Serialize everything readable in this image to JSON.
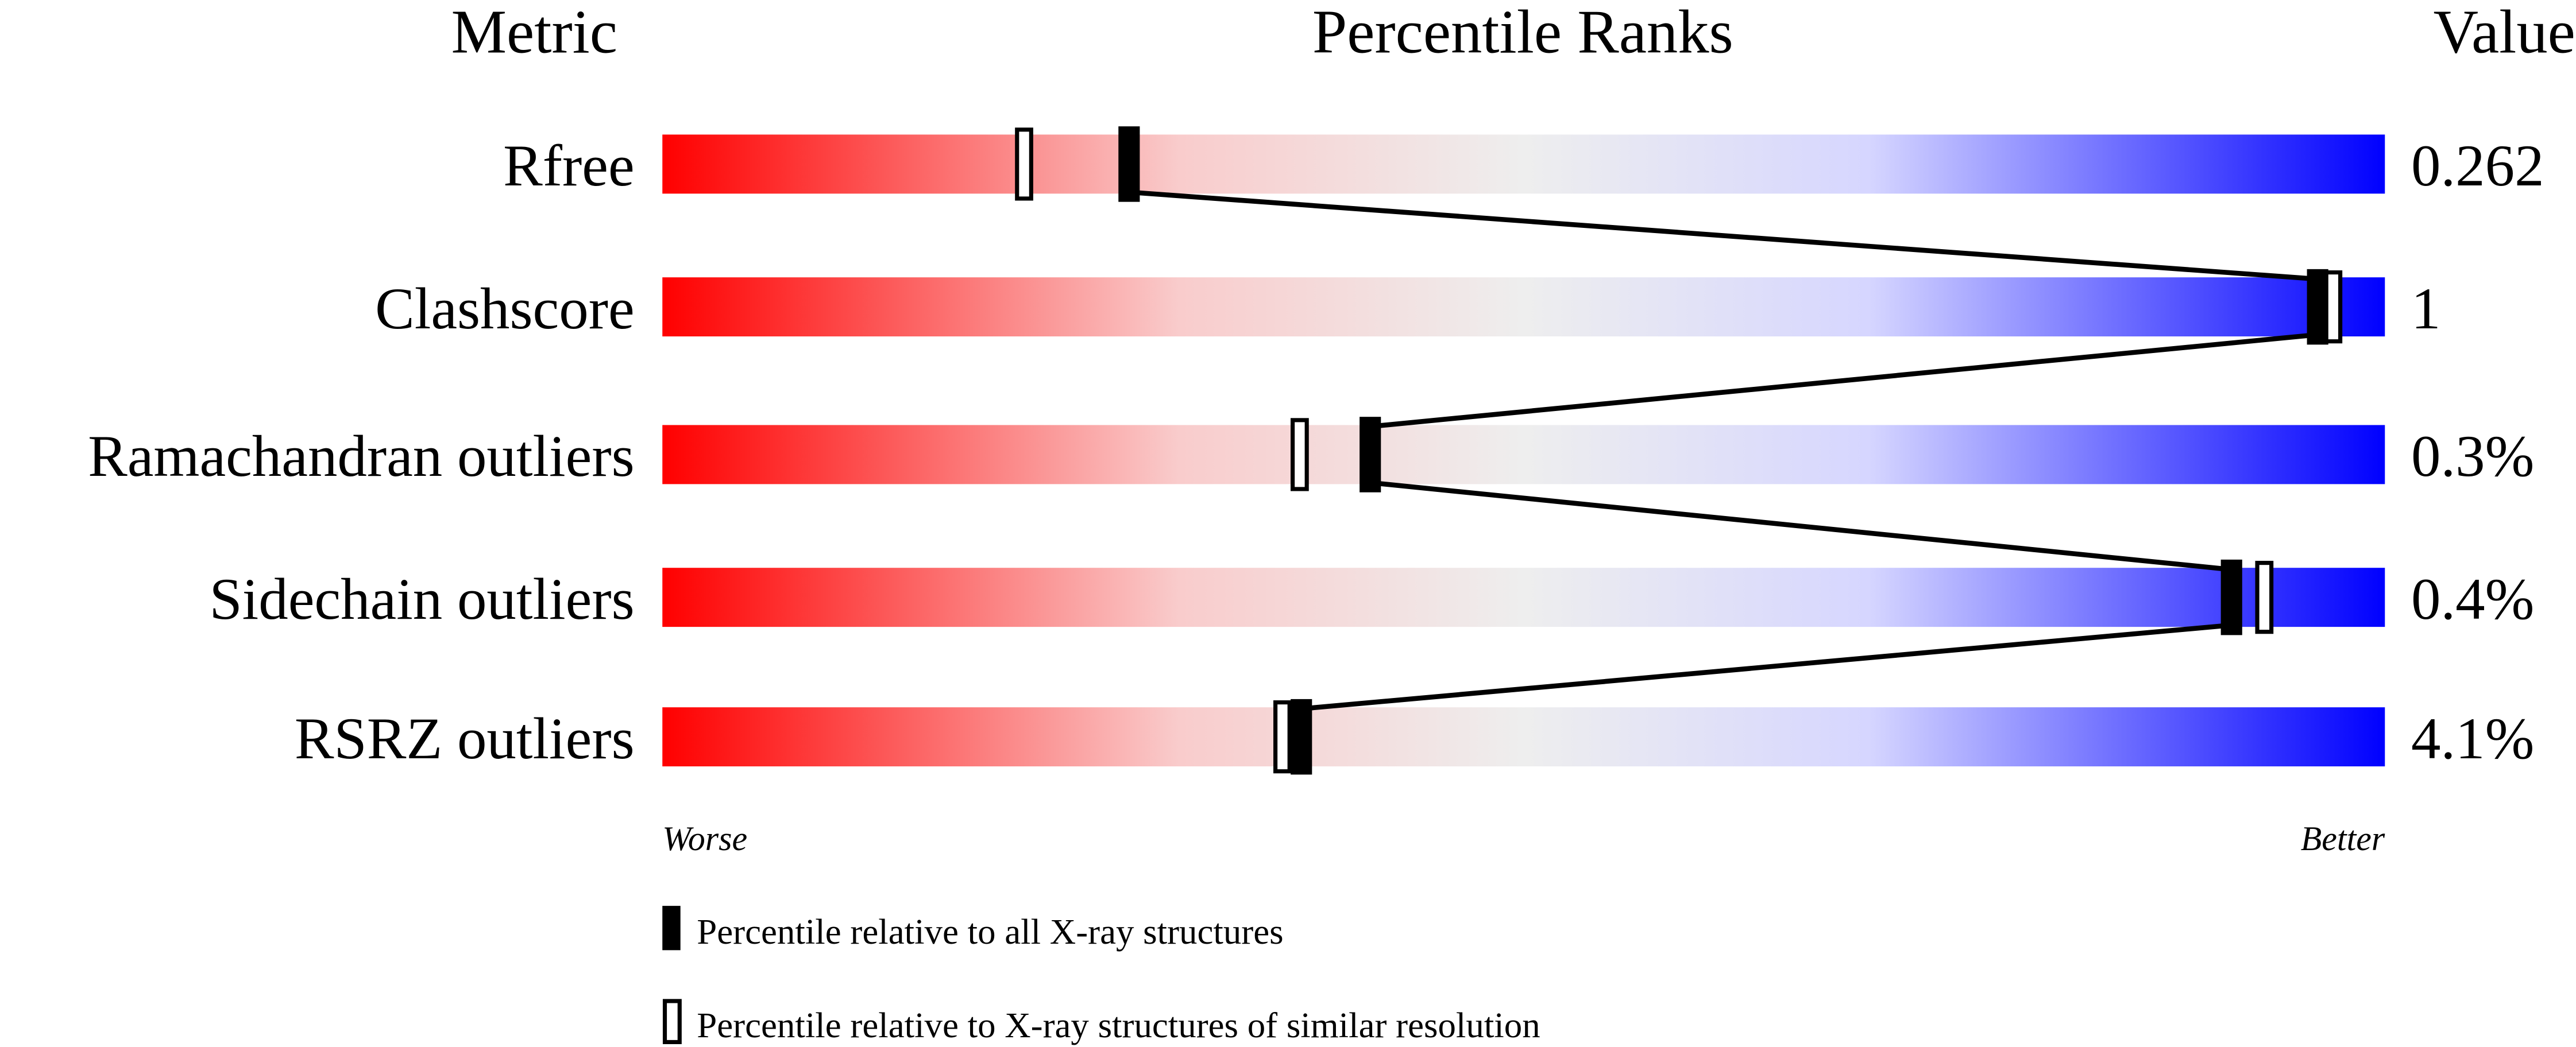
{
  "chart_data": {
    "type": "percentile-slider",
    "headers": {
      "metric": "Metric",
      "ranks": "Percentile Ranks",
      "value": "Value"
    },
    "xlim": [
      0,
      100
    ],
    "metrics": [
      {
        "name": "Rfree",
        "value": "0.262",
        "percentile_all": 27,
        "percentile_similar": 21
      },
      {
        "name": "Clashscore",
        "value": "1",
        "percentile_all": 96,
        "percentile_similar": 97
      },
      {
        "name": "Ramachandran outliers",
        "value": "0.3%",
        "percentile_all": 41,
        "percentile_similar": 37
      },
      {
        "name": "Sidechain outliers",
        "value": "0.4%",
        "percentile_all": 91,
        "percentile_similar": 93
      },
      {
        "name": "RSRZ outliers",
        "value": "4.1%",
        "percentile_all": 37,
        "percentile_similar": 36
      }
    ],
    "axis_left_label": "Worse",
    "axis_right_label": "Better",
    "legend": [
      {
        "marker": "filled",
        "label": "Percentile relative to all X-ray structures"
      },
      {
        "marker": "open",
        "label": "Percentile relative to X-ray structures of similar resolution"
      }
    ],
    "colors": {
      "worse": "#ff0000",
      "mid": "#eeeeee",
      "better": "#0000ff",
      "marker": "#000000"
    }
  }
}
